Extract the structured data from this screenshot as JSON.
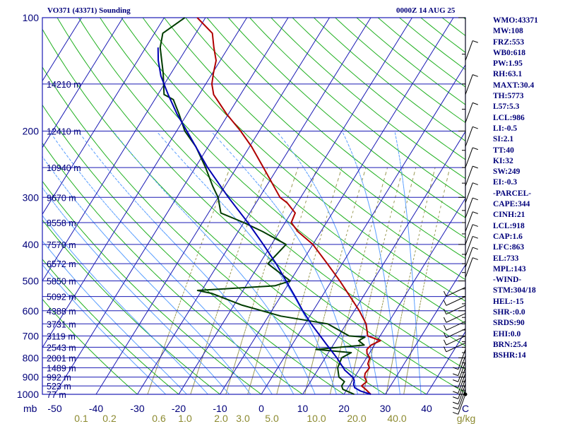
{
  "header": {
    "title": "VO371 (43371) Sounding",
    "datetime": "0000Z 14 AUG 25"
  },
  "indices": [
    "WMO:43371",
    "MW:108",
    "FRZ:553",
    "WB0:618",
    "PW:1.95",
    "RH:63.1",
    "MAXT:30.4",
    "TH:5773",
    "L57:5.3",
    "LCL:986",
    "LI:-0.5",
    "SI:2.1",
    "TT:40",
    "KI:32",
    "SW:249",
    "EI:-0.3",
    "-PARCEL-",
    "CAPE:344",
    "CINH:21",
    "LCL:918",
    "CAP:1.6",
    "LFC:863",
    "EL:733",
    "MPL:143",
    "-WIND-",
    "STM:304/18",
    "HEL:-15",
    "SHR-:0.0",
    "SRDS:90",
    "EHI:0.0",
    "BRN:25.4",
    "BSHR:14"
  ],
  "chart_data": {
    "type": "line",
    "title": "VO371 (43371) Sounding",
    "x_axis": {
      "unit_label": "C",
      "ticks": [
        -50,
        -40,
        -30,
        -20,
        -10,
        0,
        10,
        20,
        30,
        40
      ],
      "tick_labels": [
        "-50",
        "-40",
        "-30",
        "-20",
        "-10",
        "0",
        "10",
        "20",
        "30",
        "40"
      ]
    },
    "y_axis": {
      "unit_label": "mb",
      "scale": "log",
      "range": [
        1000,
        100
      ],
      "ticks": [
        100,
        200,
        300,
        400,
        500,
        600,
        700,
        800,
        900,
        1000
      ]
    },
    "mixing_ratio": {
      "unit_label": "g/kg",
      "labels": [
        "0.1",
        "0.2",
        "0.6",
        "1.0",
        "2.0",
        "3.0",
        "5.0",
        "10.0",
        "20.0",
        "40.0"
      ]
    },
    "height_labels": [
      {
        "p": 150,
        "text": "14210 m"
      },
      {
        "p": 200,
        "text": "12410 m"
      },
      {
        "p": 250,
        "text": "10940 m"
      },
      {
        "p": 300,
        "text": "9670 m"
      },
      {
        "p": 350,
        "text": "8558 m"
      },
      {
        "p": 400,
        "text": "7570 m"
      },
      {
        "p": 450,
        "text": "6572 m"
      },
      {
        "p": 500,
        "text": "5850 m"
      },
      {
        "p": 550,
        "text": "5092 m"
      },
      {
        "p": 600,
        "text": "4388 m"
      },
      {
        "p": 650,
        "text": "3731 m"
      },
      {
        "p": 700,
        "text": "3119 m"
      },
      {
        "p": 750,
        "text": "2543 m"
      },
      {
        "p": 800,
        "text": "2001 m"
      },
      {
        "p": 850,
        "text": "1489 m"
      },
      {
        "p": 900,
        "text": "992 m"
      },
      {
        "p": 950,
        "text": "523 m"
      },
      {
        "p": 1000,
        "text": "77 m"
      }
    ],
    "series": [
      {
        "color": "#b00000",
        "points": [
          [
            1000,
            26.5
          ],
          [
            970,
            24.5
          ],
          [
            950,
            23.0
          ],
          [
            925,
            23.6
          ],
          [
            900,
            22.4
          ],
          [
            880,
            22.0
          ],
          [
            850,
            22.2
          ],
          [
            830,
            21.2
          ],
          [
            800,
            20.8
          ],
          [
            780,
            19.5
          ],
          [
            760,
            18.8
          ],
          [
            740,
            19.2
          ],
          [
            720,
            20.8
          ],
          [
            700,
            17.0
          ],
          [
            650,
            14.8
          ],
          [
            600,
            11.2
          ],
          [
            550,
            6.8
          ],
          [
            500,
            2.0
          ],
          [
            450,
            -3.6
          ],
          [
            400,
            -10.0
          ],
          [
            370,
            -15.5
          ],
          [
            350,
            -18.5
          ],
          [
            330,
            -19.0
          ],
          [
            310,
            -22.5
          ],
          [
            300,
            -25.0
          ],
          [
            250,
            -33.5
          ],
          [
            220,
            -39.5
          ],
          [
            200,
            -44.5
          ],
          [
            180,
            -50.5
          ],
          [
            160,
            -56.5
          ],
          [
            150,
            -58.5
          ],
          [
            140,
            -59.8
          ],
          [
            130,
            -61.0
          ],
          [
            120,
            -63.5
          ],
          [
            110,
            -66.0
          ],
          [
            100,
            -72.0
          ]
        ]
      },
      {
        "color": "#003c00",
        "points": [
          [
            1000,
            22.5
          ],
          [
            970,
            19.0
          ],
          [
            950,
            18.2
          ],
          [
            925,
            18.2
          ],
          [
            900,
            16.2
          ],
          [
            850,
            14.5
          ],
          [
            800,
            14.0
          ],
          [
            775,
            15.5
          ],
          [
            760,
            6.5
          ],
          [
            740,
            17.5
          ],
          [
            720,
            15.5
          ],
          [
            705,
            16.5
          ],
          [
            700,
            12.5
          ],
          [
            650,
            5.5
          ],
          [
            620,
            -7.0
          ],
          [
            580,
            -18.0
          ],
          [
            540,
            -27.0
          ],
          [
            530,
            -31.0
          ],
          [
            515,
            -13.0
          ],
          [
            500,
            -10.0
          ],
          [
            450,
            -18.0
          ],
          [
            400,
            -16.5
          ],
          [
            370,
            -24.0
          ],
          [
            350,
            -30.0
          ],
          [
            330,
            -37.0
          ],
          [
            300,
            -40.0
          ],
          [
            280,
            -43.0
          ],
          [
            250,
            -47.5
          ],
          [
            220,
            -53.0
          ],
          [
            200,
            -58.0
          ],
          [
            180,
            -62.0
          ],
          [
            165,
            -65.5
          ],
          [
            160,
            -68.5
          ],
          [
            140,
            -72.0
          ],
          [
            120,
            -76.5
          ],
          [
            110,
            -78.0
          ],
          [
            100,
            -75.0
          ]
        ]
      },
      {
        "color": "#0000b4",
        "points": [
          [
            1000,
            26.5
          ],
          [
            980,
            23.5
          ],
          [
            960,
            21.6
          ],
          [
            940,
            20.8
          ],
          [
            918,
            20.4
          ],
          [
            900,
            19.5
          ],
          [
            863,
            16.6
          ],
          [
            800,
            12.8
          ],
          [
            733,
            8.0
          ],
          [
            700,
            5.5
          ],
          [
            650,
            1.5
          ],
          [
            600,
            -2.5
          ],
          [
            550,
            -6.5
          ],
          [
            500,
            -11.0
          ],
          [
            450,
            -16.0
          ],
          [
            400,
            -22.0
          ],
          [
            350,
            -29.0
          ],
          [
            300,
            -37.5
          ],
          [
            250,
            -47.0
          ],
          [
            200,
            -57.5
          ],
          [
            180,
            -62.5
          ],
          [
            160,
            -67.5
          ],
          [
            143,
            -72.0
          ],
          [
            130,
            -75.0
          ],
          [
            120,
            -77.0
          ]
        ]
      }
    ],
    "grid": true
  }
}
